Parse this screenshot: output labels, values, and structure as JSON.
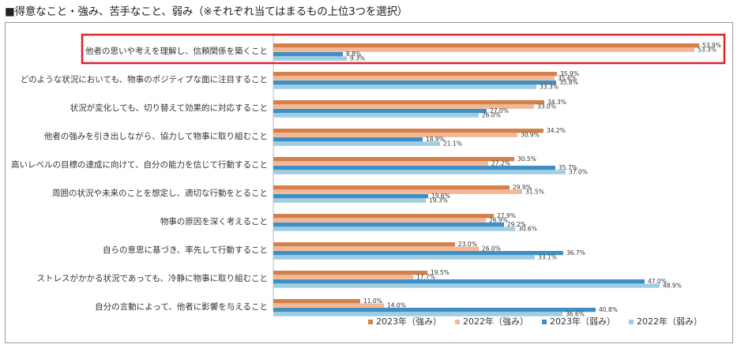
{
  "page": {
    "title": "■得意なこと・強み、苦手なこと、弱み（※それぞれ当てはまるもの上位3つを選択）"
  },
  "chart_data": {
    "type": "bar",
    "orientation": "horizontal",
    "title": "■得意なこと・強み、苦手なこと、弱み（※それぞれ当てはまるもの上位3つを選択）",
    "xlim": [
      0,
      60
    ],
    "grid": false,
    "legend_position": "bottom-right",
    "value_suffix": "%",
    "highlighted_category": "他者の思いや考えを理解し、信頼関係を築くこと",
    "highlight_color": "#d9262c",
    "categories": [
      "他者の思いや考えを理解し、信頼関係を築くこと",
      "どのような状況においても、物事のポジティブな面に注目すること",
      "状況が変化しても、切り替えて効果的に対応すること",
      "他者の強みを引き出しながら、協力して物事に取り組むこと",
      "高いレベルの目標の達成に向けて、自分の能力を信じて行動すること",
      "周囲の状況や未来のことを想定し、適切な行動をとること",
      "物事の原因を深く考えること",
      "自らの意思に基づき、率先して行動すること",
      "ストレスがかかる状況であっても、冷静に物事に取り組むこと",
      "自分の言動によって、他者に影響を与えること"
    ],
    "series": [
      {
        "name": "2023年（強み）",
        "color": "#d4804a",
        "values": [
          53.9,
          35.9,
          34.3,
          34.2,
          30.5,
          29.9,
          27.9,
          23.0,
          19.5,
          11.0
        ]
      },
      {
        "name": "2022年（強み）",
        "color": "#f2b795",
        "values": [
          53.3,
          35.6,
          33.0,
          30.9,
          27.2,
          31.5,
          26.9,
          26.0,
          17.7,
          14.0
        ]
      },
      {
        "name": "2023年（弱み）",
        "color": "#3f8fc4",
        "values": [
          8.8,
          35.8,
          27.0,
          18.9,
          35.7,
          19.6,
          29.2,
          36.7,
          47.0,
          40.8
        ]
      },
      {
        "name": "2022年（弱み）",
        "color": "#9fcde3",
        "values": [
          9.3,
          33.3,
          26.0,
          21.1,
          37.0,
          19.3,
          30.6,
          33.1,
          48.9,
          36.6
        ]
      }
    ],
    "value_labels": [
      [
        "53.9%",
        "35.9%",
        "34.3%",
        "34.2%",
        "30.5%",
        "29.9%",
        "27.9%",
        "23.0%",
        "19.5%",
        "11.0%"
      ],
      [
        "53.3%",
        "35.6%",
        "33.0%",
        "30.9%",
        "27.2%",
        "31.5%",
        "26.9%",
        "26.0%",
        "17.7%",
        "14.0%"
      ],
      [
        "8.8%",
        "35.8%",
        "27.0%",
        "18.9%",
        "35.7%",
        "19.6%",
        "29.2%",
        "36.7%",
        "47.0%",
        "40.8%"
      ],
      [
        "9.3%",
        "33.3%",
        "26.0%",
        "21.1%",
        "37.0%",
        "19.3%",
        "30.6%",
        "33.1%",
        "48.9%",
        "36.6%"
      ]
    ]
  }
}
